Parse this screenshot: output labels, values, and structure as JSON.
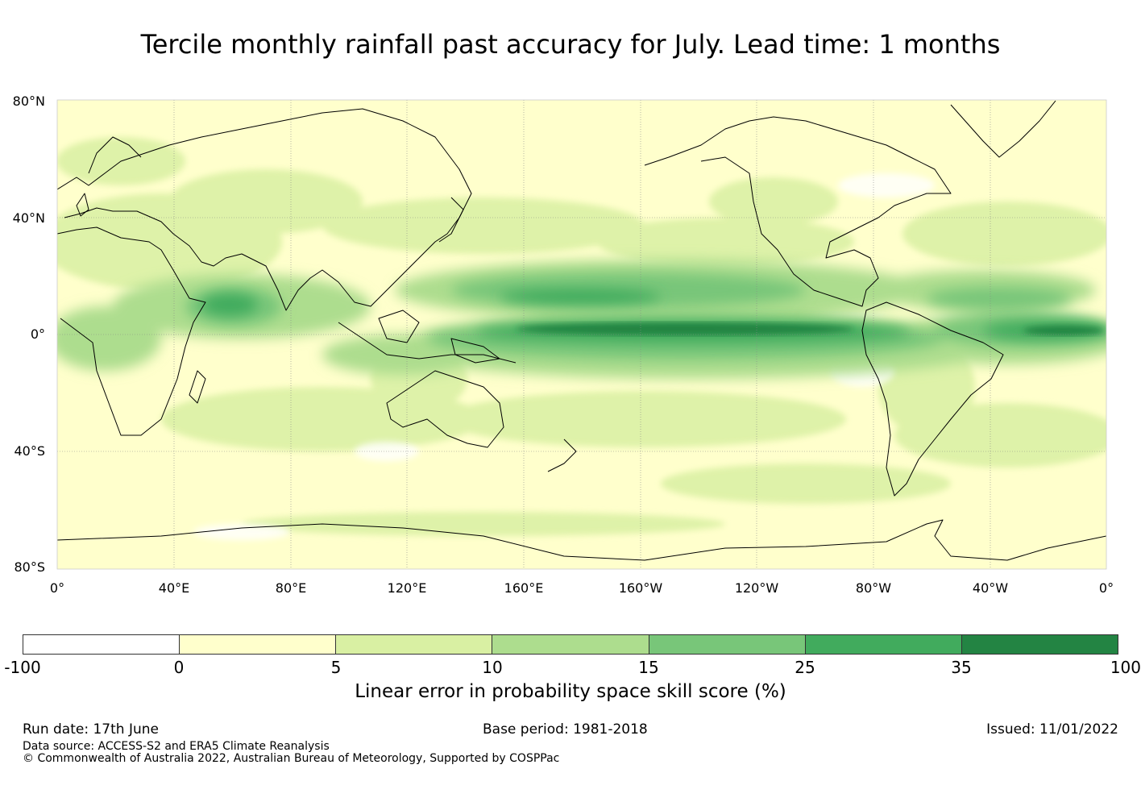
{
  "title": "Tercile monthly rainfall past accuracy for July. Lead time: 1 months",
  "map": {
    "lat_labels": [
      "80°N",
      "40°N",
      "0°",
      "40°S",
      "80°S"
    ],
    "lon_labels": [
      "0°",
      "40°E",
      "80°E",
      "120°E",
      "160°E",
      "160°W",
      "120°W",
      "80°W",
      "40°W",
      "0°"
    ]
  },
  "colorbar": {
    "ticks": [
      "-100",
      "0",
      "5",
      "10",
      "15",
      "25",
      "35",
      "100"
    ],
    "colors": [
      "#ffffff",
      "#ffffcc",
      "#d9f0a3",
      "#addd8e",
      "#78c679",
      "#41ab5d",
      "#238443"
    ],
    "label": "Linear error in probability space skill score (%)"
  },
  "footer": {
    "run_date": "Run date: 17th June",
    "base_period": "Base period: 1981-2018",
    "issued": "Issued: 11/01/2022",
    "data_source": "Data source: ACCESS-S2 and ERA5 Climate Reanalysis",
    "copyright": "© Commonwealth of Australia 2022, Australian Bureau of Meteorology, Supported by COSPPac"
  }
}
